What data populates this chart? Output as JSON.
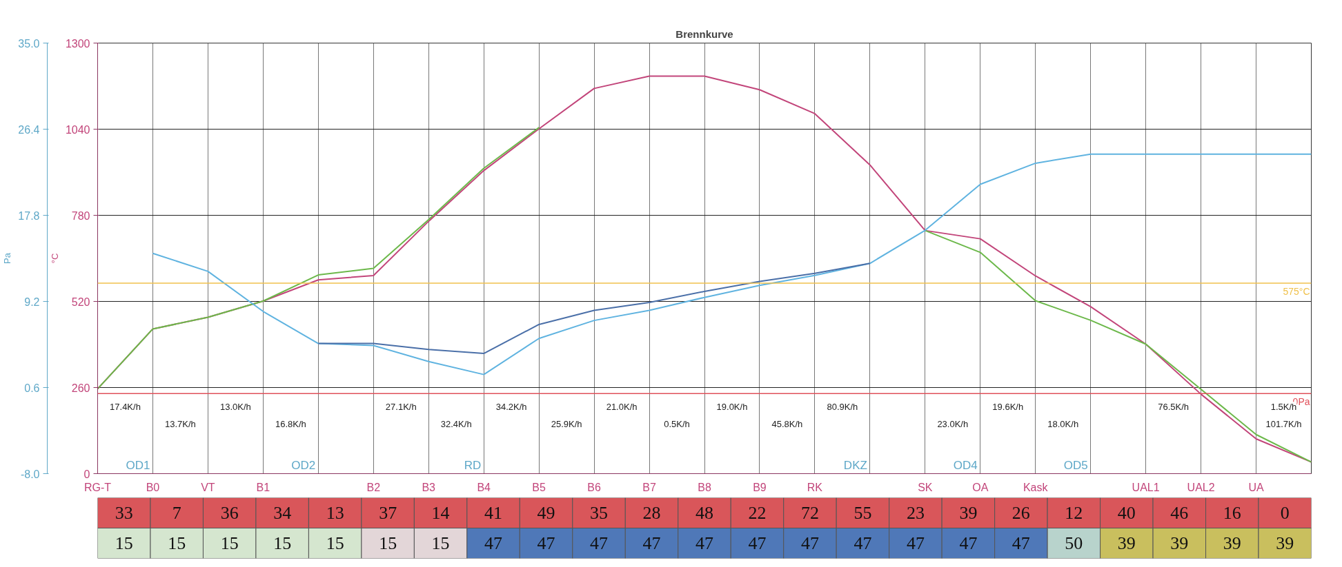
{
  "chart_data": [
    {
      "type": "line",
      "title": "Brennkurve",
      "ylabel": "°C",
      "y2label": "Pa",
      "categories": [
        "RG-T",
        "B0",
        "VT",
        "B1",
        null,
        "B2",
        "B3",
        "B4",
        "B5",
        "B6",
        "B7",
        "B8",
        "B9",
        "RK",
        null,
        "SK",
        "OA",
        "Kask",
        null,
        "UAL1",
        "UAL2",
        "UA",
        null
      ],
      "ylim": [
        0,
        1300
      ],
      "yticks": [
        0,
        260,
        520,
        780,
        1040,
        1300
      ],
      "y2lim": [
        -8,
        35
      ],
      "y2ticks": [
        {
          "value": -8,
          "label": "-8.0"
        },
        0.6,
        9.2,
        17.8,
        26.4,
        {
          "value": 35,
          "label": "35.0"
        }
      ],
      "grid": true,
      "series": [
        {
          "color": "#c2457a",
          "values": [
            256,
            437,
            472,
            521,
            585,
            598,
            762,
            915,
            1041,
            1163,
            1200,
            1200,
            1159,
            1087,
            932,
            734,
            709,
            597,
            504,
            391,
            240,
            105,
            35
          ]
        },
        {
          "color": "#6cb84a",
          "values": [
            256,
            437,
            472,
            521,
            600,
            620,
            767,
            922,
            1045,
            null,
            null,
            null,
            null,
            null,
            null,
            734,
            668,
            522,
            463,
            391,
            255,
            118,
            35
          ]
        },
        {
          "color": "#5fb3e0",
          "axis": "y2",
          "values": [
            null,
            14.0,
            12.2,
            8.2,
            5.0,
            4.8,
            3.2,
            1.9,
            5.5,
            7.3,
            8.3,
            9.6,
            10.8,
            11.8,
            13.0,
            16.3,
            20.9,
            23.0,
            23.9,
            23.9,
            23.9,
            23.9,
            23.9
          ]
        },
        {
          "color": "#4a6fa8",
          "axis": "y2",
          "values": [
            null,
            null,
            null,
            null,
            5.0,
            5.0,
            4.4,
            4.0,
            6.9,
            8.3,
            9.1,
            10.2,
            11.2,
            12.0,
            13.0,
            null,
            null,
            null,
            null,
            null,
            null,
            null,
            null
          ]
        }
      ],
      "ref_lines": [
        {
          "axis": "y",
          "value": 575,
          "label": "575°C",
          "color": "#f0c14b"
        },
        {
          "axis": "y2",
          "value": 0,
          "label": "0Pa",
          "color": "#e0505a"
        }
      ],
      "annotations": [
        "17.4K/h",
        "13.0K/h",
        "27.1K/h",
        "34.2K/h",
        "21.0K/h",
        "19.0K/h",
        "80.9K/h",
        "19.6K/h",
        "76.5K/h",
        "1.5K/h",
        "13.7K/h",
        "16.8K/h",
        "32.4K/h",
        "25.9K/h",
        "0.5K/h",
        "45.8K/h",
        "23.0K/h",
        "18.0K/h",
        "101.7K/h",
        "OD1",
        "OD2",
        "RD",
        "DKZ",
        "OD4",
        "OD5"
      ]
    },
    {
      "type": "heatmap",
      "categories": [
        null,
        null,
        null,
        null,
        null,
        null,
        null,
        null,
        null,
        null,
        null,
        null,
        null,
        null,
        null,
        null,
        null,
        null,
        null,
        null,
        null,
        null,
        null
      ],
      "y_categories": [
        null,
        null
      ],
      "tick_labels": false,
      "data_labels": true,
      "cells": [
        [
          33,
          7,
          36,
          34,
          13,
          37,
          14,
          41,
          49,
          35,
          28,
          48,
          22,
          72,
          55,
          23,
          39,
          26,
          12,
          40,
          46,
          16,
          0
        ],
        [
          15,
          15,
          15,
          15,
          15,
          15,
          15,
          47,
          47,
          47,
          47,
          47,
          47,
          47,
          47,
          47,
          47,
          47,
          50,
          39,
          39,
          39,
          39
        ]
      ],
      "colors": [
        [
          "#d9565a",
          "#d9565a",
          "#d9565a",
          "#d9565a",
          "#d9565a",
          "#d9565a",
          "#d9565a",
          "#d9565a",
          "#d9565a",
          "#d9565a",
          "#d9565a",
          "#d9565a",
          "#d9565a",
          "#d9565a",
          "#d9565a",
          "#d9565a",
          "#d9565a",
          "#d9565a",
          "#d9565a",
          "#d9565a",
          "#d9565a",
          "#d9565a",
          "#d9565a"
        ],
        [
          "#d5e6cf",
          "#d5e6cf",
          "#d5e6cf",
          "#d5e6cf",
          "#d5e6cf",
          "#e3d6d8",
          "#e3d6d8",
          "#4f78b8",
          "#4f78b8",
          "#4f78b8",
          "#4f78b8",
          "#4f78b8",
          "#4f78b8",
          "#4f78b8",
          "#4f78b8",
          "#4f78b8",
          "#4f78b8",
          "#4f78b8",
          "#b8d3cc",
          "#c9bf5e",
          "#c9bf5e",
          "#c9bf5e",
          "#c9bf5e"
        ]
      ]
    }
  ]
}
